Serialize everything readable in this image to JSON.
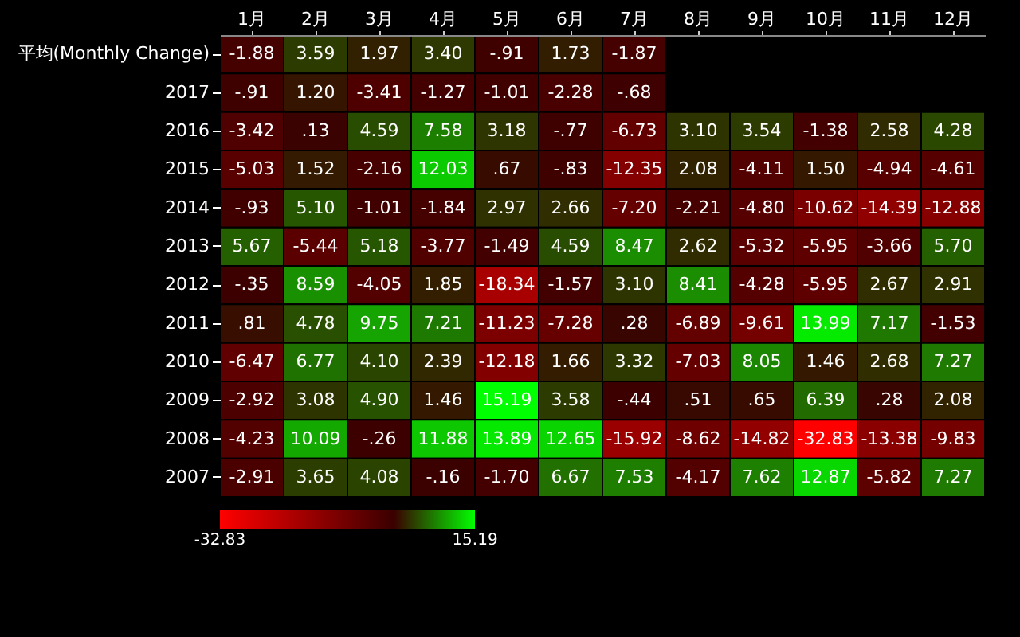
{
  "chart_data": {
    "type": "heatmap",
    "categories": [
      "1月",
      "2月",
      "3月",
      "4月",
      "5月",
      "6月",
      "7月",
      "8月",
      "9月",
      "10月",
      "11月",
      "12月"
    ],
    "y_categories": [
      "平均(Monthly Change)",
      "2017",
      "2016",
      "2015",
      "2014",
      "2013",
      "2012",
      "2011",
      "2010",
      "2009",
      "2008",
      "2007"
    ],
    "cells": [
      [
        -1.88,
        3.59,
        1.97,
        3.4,
        -0.91,
        1.73,
        -1.87,
        null,
        null,
        null,
        null,
        null
      ],
      [
        -0.91,
        1.2,
        -3.41,
        -1.27,
        -1.01,
        -2.28,
        -0.68,
        null,
        null,
        null,
        null,
        null
      ],
      [
        -3.42,
        0.13,
        4.59,
        7.58,
        3.18,
        -0.77,
        -6.73,
        3.1,
        3.54,
        -1.38,
        2.58,
        4.28
      ],
      [
        -5.03,
        1.52,
        -2.16,
        12.03,
        0.67,
        -0.83,
        -12.35,
        2.08,
        -4.11,
        1.5,
        -4.94,
        -4.61
      ],
      [
        -0.93,
        5.1,
        -1.01,
        -1.84,
        2.97,
        2.66,
        -7.2,
        -2.21,
        -4.8,
        -10.62,
        -14.39,
        -12.88
      ],
      [
        5.67,
        -5.44,
        5.18,
        -3.77,
        -1.49,
        4.59,
        8.47,
        2.62,
        -5.32,
        -5.95,
        -3.66,
        5.7
      ],
      [
        -0.35,
        8.59,
        -4.05,
        1.85,
        -18.34,
        -1.57,
        3.1,
        8.41,
        -4.28,
        -5.95,
        2.67,
        2.91
      ],
      [
        0.81,
        4.78,
        9.75,
        7.21,
        -11.23,
        -7.28,
        0.28,
        -6.89,
        -9.61,
        13.99,
        7.17,
        -1.53
      ],
      [
        -6.47,
        6.77,
        4.1,
        2.39,
        -12.18,
        1.66,
        3.32,
        -7.03,
        8.05,
        1.46,
        2.68,
        7.27
      ],
      [
        -2.92,
        3.08,
        4.9,
        1.46,
        15.19,
        3.58,
        -0.44,
        0.51,
        0.65,
        6.39,
        0.28,
        2.08
      ],
      [
        -4.23,
        10.09,
        -0.26,
        11.88,
        13.89,
        12.65,
        -15.92,
        -8.62,
        -14.82,
        -32.83,
        -13.38,
        -9.83
      ],
      [
        -2.91,
        3.65,
        4.08,
        -0.16,
        -1.7,
        6.67,
        7.53,
        -4.17,
        7.62,
        12.87,
        -5.82,
        7.27
      ]
    ],
    "cell_labels": [
      [
        "-1.88",
        "3.59",
        "1.97",
        "3.40",
        "-.91",
        "1.73",
        "-1.87",
        null,
        null,
        null,
        null,
        null
      ],
      [
        "-.91",
        "1.20",
        "-3.41",
        "-1.27",
        "-1.01",
        "-2.28",
        "-.68",
        null,
        null,
        null,
        null,
        null
      ],
      [
        "-3.42",
        ".13",
        "4.59",
        "7.58",
        "3.18",
        "-.77",
        "-6.73",
        "3.10",
        "3.54",
        "-1.38",
        "2.58",
        "4.28"
      ],
      [
        "-5.03",
        "1.52",
        "-2.16",
        "12.03",
        ".67",
        "-.83",
        "-12.35",
        "2.08",
        "-4.11",
        "1.50",
        "-4.94",
        "-4.61"
      ],
      [
        "-.93",
        "5.10",
        "-1.01",
        "-1.84",
        "2.97",
        "2.66",
        "-7.20",
        "-2.21",
        "-4.80",
        "-10.62",
        "-14.39",
        "-12.88"
      ],
      [
        "5.67",
        "-5.44",
        "5.18",
        "-3.77",
        "-1.49",
        "4.59",
        "8.47",
        "2.62",
        "-5.32",
        "-5.95",
        "-3.66",
        "5.70"
      ],
      [
        "-.35",
        "8.59",
        "-4.05",
        "1.85",
        "-18.34",
        "-1.57",
        "3.10",
        "8.41",
        "-4.28",
        "-5.95",
        "2.67",
        "2.91"
      ],
      [
        ".81",
        "4.78",
        "9.75",
        "7.21",
        "-11.23",
        "-7.28",
        ".28",
        "-6.89",
        "-9.61",
        "13.99",
        "7.17",
        "-1.53"
      ],
      [
        "-6.47",
        "6.77",
        "4.10",
        "2.39",
        "-12.18",
        "1.66",
        "3.32",
        "-7.03",
        "8.05",
        "1.46",
        "2.68",
        "7.27"
      ],
      [
        "-2.92",
        "3.08",
        "4.90",
        "1.46",
        "15.19",
        "3.58",
        "-.44",
        ".51",
        ".65",
        "6.39",
        ".28",
        "2.08"
      ],
      [
        "-4.23",
        "10.09",
        "-.26",
        "11.88",
        "13.89",
        "12.65",
        "-15.92",
        "-8.62",
        "-14.82",
        "-32.83",
        "-13.38",
        "-9.83"
      ],
      [
        "-2.91",
        "3.65",
        "4.08",
        "-.16",
        "-1.70",
        "6.67",
        "7.53",
        "-4.17",
        "7.62",
        "12.87",
        "-5.82",
        "7.27"
      ]
    ],
    "clim": [
      -32.83,
      15.19
    ],
    "cticks": [
      -32.83,
      15.19
    ]
  }
}
